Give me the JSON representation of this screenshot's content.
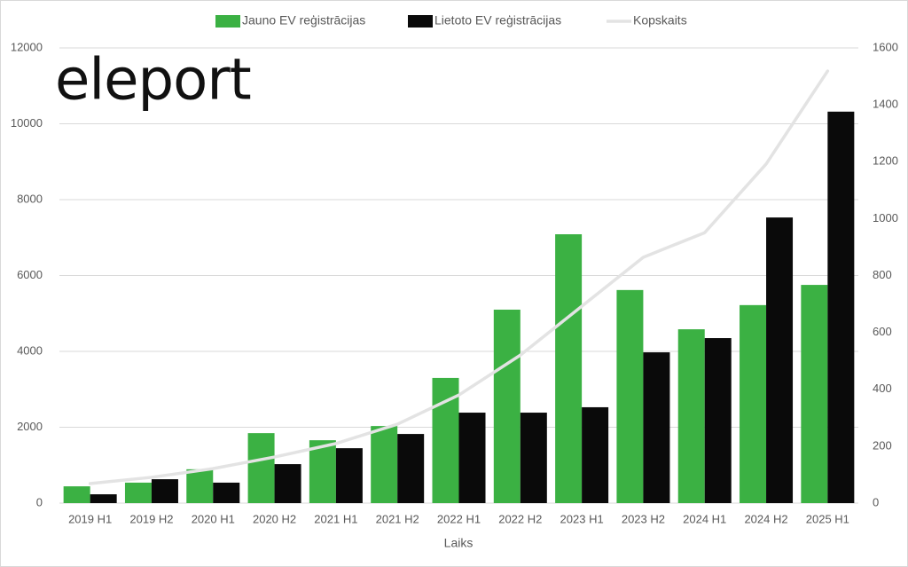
{
  "chart_data": {
    "type": "bar-line",
    "logo": "eleport",
    "x_label": "Laiks",
    "categories": [
      "2019 H1",
      "2019 H2",
      "2020 H1",
      "2020 H2",
      "2021 H1",
      "2021 H2",
      "2022 H1",
      "2022 H2",
      "2023 H1",
      "2023 H2",
      "2024 H1",
      "2024 H2",
      "2025 H1"
    ],
    "series": [
      {
        "name": "Jauno EV reģistrācijas",
        "color": "#3bb143",
        "kind": "bar",
        "axis": "y2",
        "values": [
          59,
          72,
          119,
          246,
          221,
          271,
          440,
          680,
          945,
          749,
          611,
          696,
          767
        ]
      },
      {
        "name": "Lietoto EV reģistrācijas",
        "color": "#0a0a0a",
        "kind": "bar",
        "axis": "y2",
        "values": [
          31,
          84,
          72,
          137,
          193,
          243,
          318,
          318,
          337,
          530,
          580,
          1004,
          1376
        ]
      },
      {
        "name": "Kopskaits",
        "color": "#e3e3e3",
        "kind": "line",
        "axis": "y",
        "values": [
          515,
          680,
          910,
          1215,
          1570,
          2080,
          2850,
          3900,
          5190,
          6480,
          7130,
          8940,
          11390
        ]
      }
    ],
    "ylim": [
      0,
      12000
    ],
    "yticks": [
      0,
      2000,
      4000,
      6000,
      8000,
      10000,
      12000
    ],
    "y2lim": [
      0,
      1600
    ],
    "y2ticks": [
      0,
      200,
      400,
      600,
      800,
      1000,
      1200,
      1400,
      1600
    ],
    "grid": true,
    "legend": "top"
  }
}
